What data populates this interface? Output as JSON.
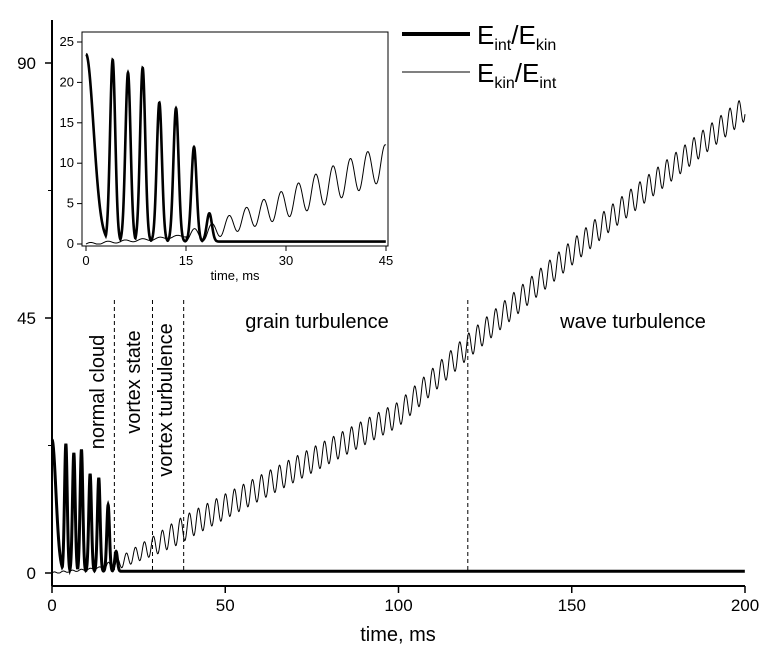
{
  "chart_data": [
    {
      "type": "line",
      "title": "",
      "xlabel": "time, ms",
      "ylabel": "",
      "xlim": [
        0,
        200
      ],
      "ylim": [
        0,
        90
      ],
      "x_ticks": [
        0,
        50,
        100,
        150,
        200
      ],
      "y_ticks": [
        0,
        45,
        90
      ],
      "grid": false,
      "legend_position": "top-right",
      "series": [
        {
          "name": "E_int/E_kin",
          "style": "thick",
          "peaks": [
            {
              "t": 0,
              "v": 23.5
            },
            {
              "t": 4,
              "v": 22.8
            },
            {
              "t": 6.3,
              "v": 21.2
            },
            {
              "t": 8.5,
              "v": 21.8
            },
            {
              "t": 11,
              "v": 17.5
            },
            {
              "t": 13.5,
              "v": 16.8
            },
            {
              "t": 16.2,
              "v": 12
            },
            {
              "t": 18.5,
              "v": 3.8
            }
          ],
          "tail_value": 0.3
        },
        {
          "name": "E_kin/E_int",
          "style": "thin",
          "points": [
            [
              0,
              0
            ],
            [
              10,
              0.6
            ],
            [
              18,
              1.3
            ],
            [
              25,
              3.5
            ],
            [
              30,
              5
            ],
            [
              40,
              8.5
            ],
            [
              60,
              15
            ],
            [
              80,
              21.5
            ],
            [
              100,
              28
            ],
            [
              120,
              40
            ],
            [
              140,
              51
            ],
            [
              160,
              62
            ],
            [
              180,
              72
            ],
            [
              200,
              82
            ]
          ],
          "oscillation_period": 2.6,
          "oscillation_amplitude": 2.2
        }
      ],
      "regions": [
        {
          "label": "normal cloud",
          "from": 0,
          "to": 18
        },
        {
          "label": "vortex state",
          "from": 18,
          "to": 29
        },
        {
          "label": "vortex turbulence",
          "from": 29,
          "to": 38
        },
        {
          "label": "grain turbulence",
          "from": 38,
          "to": 120
        },
        {
          "label": "wave turbulence",
          "from": 120,
          "to": 200
        }
      ],
      "dividers": [
        18,
        29,
        38,
        120
      ]
    },
    {
      "type": "line",
      "title": "",
      "xlabel": "time, ms",
      "ylabel": "",
      "xlim": [
        0,
        45
      ],
      "ylim": [
        0,
        25
      ],
      "x_ticks": [
        0,
        15,
        30,
        45
      ],
      "y_ticks": [
        0,
        5,
        10,
        15,
        20,
        25
      ],
      "grid": false,
      "series": [
        {
          "name": "E_int/E_kin",
          "style": "thick"
        },
        {
          "name": "E_kin/E_int",
          "style": "thin"
        }
      ]
    }
  ],
  "legend": [
    {
      "main": "E",
      "sub1": "int",
      "slash": "/E",
      "sub2": "kin",
      "style": "thick"
    },
    {
      "main": "E",
      "sub1": "kin",
      "slash": "/E",
      "sub2": "int",
      "style": "thin"
    }
  ]
}
